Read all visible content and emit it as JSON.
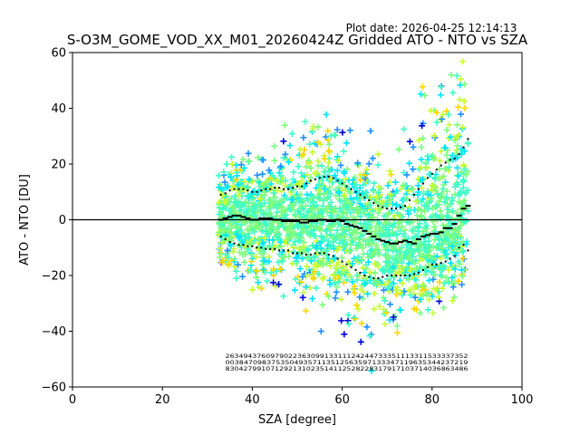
{
  "chart_data": {
    "type": "scatter",
    "title": "S-O3M_GOME_VOD_XX_M01_20260424Z Gridded ATO - NTO vs SZA",
    "plot_date": "Plot date: 2026-04-25 12:14:13",
    "xlabel": "SZA [degree]",
    "ylabel": "ATO - NTO [DU]",
    "xlim": [
      0,
      100
    ],
    "ylim": [
      -60,
      60
    ],
    "x_ticks": [
      0,
      20,
      40,
      60,
      80,
      100
    ],
    "y_ticks": [
      -60,
      -40,
      -20,
      0,
      20,
      40,
      60
    ],
    "x_tick_labels": [
      "0",
      "20",
      "40",
      "60",
      "80",
      "100"
    ],
    "y_tick_labels": [
      "−60",
      "−40",
      "−20",
      "0",
      "20",
      "40",
      "60"
    ],
    "grid": false,
    "reference_line_y": 0,
    "marker": "+",
    "density_colors": [
      "#0000dd",
      "#1e90ff",
      "#00e5ff",
      "#3dffc8",
      "#7dff7d",
      "#c8ff32",
      "#ffd700"
    ],
    "scatter_x_range": [
      32.5,
      88
    ],
    "mean_series": {
      "name": "mean (dash)",
      "x": [
        33,
        34,
        35,
        36,
        37,
        38,
        39,
        40,
        41,
        42,
        43,
        44,
        45,
        46,
        47,
        48,
        49,
        50,
        51,
        52,
        53,
        54,
        55,
        56,
        57,
        58,
        59,
        60,
        61,
        62,
        63,
        64,
        65,
        66,
        67,
        68,
        69,
        70,
        71,
        72,
        73,
        74,
        75,
        76,
        77,
        78,
        79,
        80,
        81,
        82,
        83,
        84,
        85,
        86,
        87,
        88
      ],
      "y": [
        0,
        0.5,
        1,
        1.5,
        1.5,
        1,
        0.5,
        0,
        0,
        0.5,
        0.5,
        0.5,
        0,
        0,
        -0.5,
        -0.5,
        -0.5,
        -0.5,
        -1,
        -1,
        -0.5,
        -0.5,
        0,
        0,
        -0.5,
        -0.5,
        0,
        -0.5,
        -1.5,
        -2,
        -2.5,
        -3,
        -4,
        -5,
        -6,
        -7,
        -7.5,
        -8,
        -8.5,
        -8.5,
        -8,
        -7.5,
        -8,
        -8.5,
        -7,
        -6,
        -5.5,
        -5,
        -5,
        -4.5,
        -3,
        -3,
        -1.5,
        1.5,
        4,
        5
      ]
    },
    "std_upper": {
      "name": "mean + std (dots)",
      "x": [
        33,
        34,
        35,
        36,
        37,
        38,
        39,
        40,
        41,
        42,
        43,
        44,
        45,
        46,
        47,
        48,
        49,
        50,
        51,
        52,
        53,
        54,
        55,
        56,
        57,
        58,
        59,
        60,
        61,
        62,
        63,
        64,
        65,
        66,
        67,
        68,
        69,
        70,
        71,
        72,
        73,
        74,
        75,
        76,
        77,
        78,
        79,
        80,
        81,
        82,
        83,
        84,
        85,
        86,
        87,
        88
      ],
      "y": [
        9,
        9.5,
        10.5,
        11,
        11,
        11,
        10.5,
        10,
        10,
        10.5,
        11,
        11,
        11.5,
        11.5,
        11,
        11,
        11.5,
        12,
        12,
        13,
        14,
        14.5,
        15,
        15.5,
        15.5,
        15,
        14,
        13,
        12,
        11,
        10,
        9,
        8,
        7,
        6,
        5,
        4.5,
        4,
        4,
        4,
        4.5,
        5,
        7,
        9,
        11,
        13,
        15,
        16.5,
        18,
        19.5,
        20.5,
        21.5,
        22,
        23.5,
        26,
        29
      ]
    },
    "std_lower": {
      "name": "mean - std (dots)",
      "x": [
        33,
        34,
        35,
        36,
        37,
        38,
        39,
        40,
        41,
        42,
        43,
        44,
        45,
        46,
        47,
        48,
        49,
        50,
        51,
        52,
        53,
        54,
        55,
        56,
        57,
        58,
        59,
        60,
        61,
        62,
        63,
        64,
        65,
        66,
        67,
        68,
        69,
        70,
        71,
        72,
        73,
        74,
        75,
        76,
        77,
        78,
        79,
        80,
        81,
        82,
        83,
        84,
        85,
        86,
        87,
        88
      ],
      "y": [
        -6,
        -7,
        -8,
        -8.5,
        -9,
        -9,
        -9.5,
        -9.5,
        -10,
        -10,
        -10.5,
        -10.5,
        -10.5,
        -11,
        -11,
        -11,
        -12,
        -12,
        -12,
        -12.5,
        -12.5,
        -12,
        -12,
        -12,
        -12.5,
        -13,
        -14,
        -15,
        -16,
        -17,
        -18,
        -19,
        -20,
        -20.5,
        -21,
        -21,
        -20.5,
        -20,
        -20,
        -20,
        -20,
        -20,
        -20,
        -19.5,
        -19,
        -18,
        -17,
        -16,
        -16,
        -15.5,
        -15,
        -14,
        -13,
        -10,
        -9,
        -11
      ]
    },
    "count_rows": [
      "263494376097902236309913311124244733351113311533337352",
      "00384709837535049357113512563597133347119635344237219",
      "830427991071292131023514112528228317917103714036863486"
    ]
  }
}
